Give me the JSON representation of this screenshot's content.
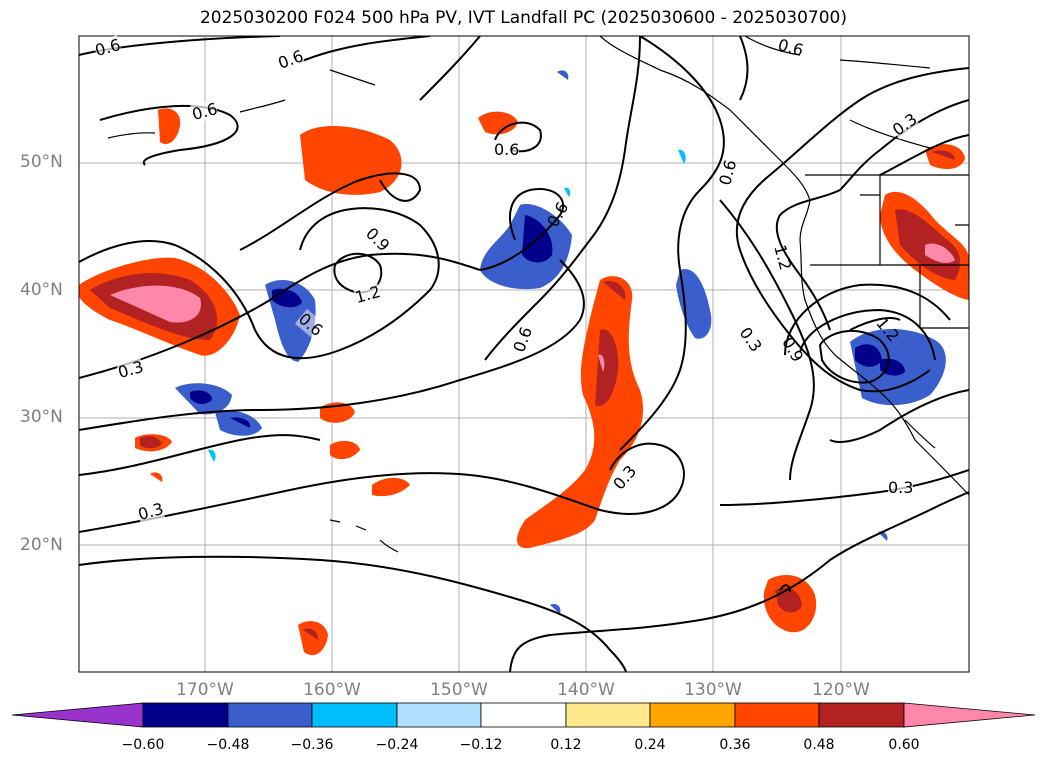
{
  "title": "2025030200 F024 500 hPa PV, IVT Landfall PC (2025030600 - 2025030700)",
  "lat_labels": [
    "50°N",
    "40°N",
    "30°N",
    "20°N"
  ],
  "lon_labels": [
    "170°W",
    "160°W",
    "150°W",
    "140°W",
    "130°W",
    "120°W"
  ],
  "colorbar": {
    "ticks": [
      "−0.60",
      "−0.48",
      "−0.36",
      "−0.24",
      "−0.12",
      "0.12",
      "0.24",
      "0.36",
      "0.48",
      "0.60"
    ],
    "colors": [
      "#9933cc",
      "#00008b",
      "#3a5fcd",
      "#00bfff",
      "#b0e2ff",
      "#ffffff",
      "#ffe88c",
      "#ffa500",
      "#ff4500",
      "#b22222",
      "#ff88aa"
    ]
  },
  "contour_labels": [
    "0.6",
    "0.6",
    "0.6",
    "0.6",
    "0.6",
    "0.6",
    "0.6",
    "0.6",
    "0.9",
    "0.9",
    "1.2",
    "1.2",
    "0.3",
    "0.3",
    "0.3",
    "0.3",
    "0.3",
    "0.3",
    "0.6",
    "1.2"
  ]
}
